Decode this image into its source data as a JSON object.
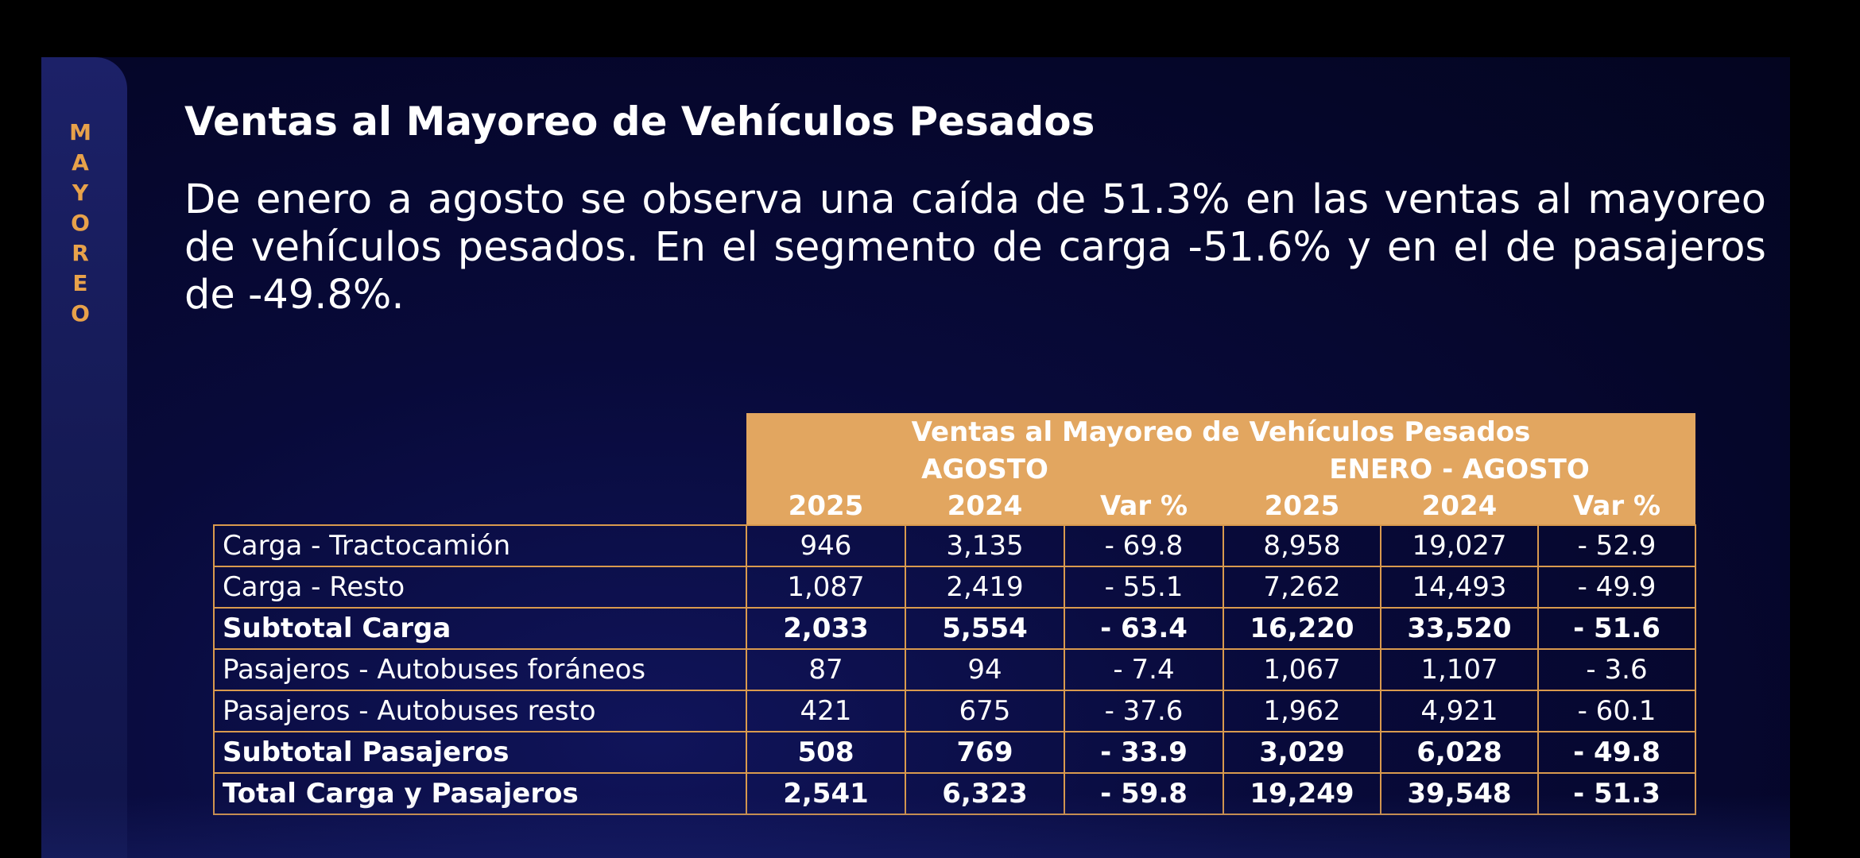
{
  "side_label": [
    "M",
    "A",
    "Y",
    "O",
    "R",
    "E",
    "O"
  ],
  "title": "Ventas al Mayoreo de Vehículos Pesados",
  "description": "De enero a agosto se observa una caída de 51.3% en las ventas al mayoreo de vehículos pesados. En el segmento de carga -51.6% y en el de pasajeros de -49.8%.",
  "table": {
    "title": "Ventas al Mayoreo de Vehículos Pesados",
    "group_agosto": "AGOSTO",
    "group_enero_agosto": "ENERO - AGOSTO",
    "columns": [
      "2025",
      "2024",
      "Var %",
      "2025",
      "2024",
      "Var %"
    ],
    "rows": [
      {
        "label": "Carga - Tractocamión",
        "values": [
          "946",
          "3,135",
          "- 69.8",
          "8,958",
          "19,027",
          "- 52.9"
        ],
        "bold": false
      },
      {
        "label": "Carga - Resto",
        "values": [
          "1,087",
          "2,419",
          "- 55.1",
          "7,262",
          "14,493",
          "- 49.9"
        ],
        "bold": false
      },
      {
        "label": "Subtotal Carga",
        "values": [
          "2,033",
          "5,554",
          "- 63.4",
          "16,220",
          "33,520",
          "- 51.6"
        ],
        "bold": true
      },
      {
        "label": "Pasajeros - Autobuses foráneos",
        "values": [
          "87",
          "94",
          "- 7.4",
          "1,067",
          "1,107",
          "- 3.6"
        ],
        "bold": false
      },
      {
        "label": "Pasajeros - Autobuses resto",
        "values": [
          "421",
          "675",
          "- 37.6",
          "1,962",
          "4,921",
          "- 60.1"
        ],
        "bold": false
      },
      {
        "label": "Subtotal Pasajeros",
        "values": [
          "508",
          "769",
          "- 33.9",
          "3,029",
          "6,028",
          "- 49.8"
        ],
        "bold": true
      },
      {
        "label": "Total Carga y Pasajeros",
        "values": [
          "2,541",
          "6,323",
          "- 59.8",
          "19,249",
          "39,548",
          "- 51.3"
        ],
        "bold": true
      }
    ]
  },
  "colors": {
    "header_bg": "#e2a660",
    "accent": "#e8a24a",
    "background": "#080a3a"
  }
}
